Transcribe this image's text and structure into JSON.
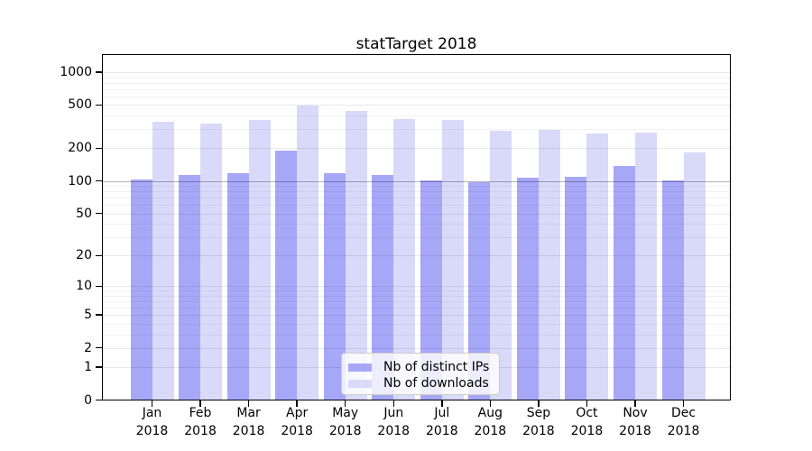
{
  "title": "statTarget 2018",
  "legend": {
    "items": [
      {
        "label": "Nb of distinct IPs",
        "color": "#a7a7f8"
      },
      {
        "label": "Nb of downloads",
        "color": "#d9d9f9"
      }
    ]
  },
  "chart_data": {
    "type": "bar",
    "title": "statTarget 2018",
    "categories": [
      "Jan",
      "Feb",
      "Mar",
      "Apr",
      "May",
      "Jun",
      "Jul",
      "Aug",
      "Sep",
      "Oct",
      "Nov",
      "Dec"
    ],
    "x_year_label": "2018",
    "series": [
      {
        "name": "Nb of distinct IPs",
        "color": "#a7a7f8",
        "values": [
          103,
          114,
          118,
          192,
          118,
          113,
          102,
          98,
          107,
          110,
          138,
          102
        ]
      },
      {
        "name": "Nb of downloads",
        "color": "#d9d9f9",
        "values": [
          354,
          338,
          365,
          490,
          441,
          375,
          368,
          292,
          297,
          275,
          280,
          182
        ]
      }
    ],
    "yscale": "log1p",
    "ylim": [
      0,
      1000
    ],
    "yticks": [
      0,
      1,
      2,
      5,
      10,
      20,
      50,
      100,
      200,
      500,
      1000
    ],
    "minor_gridline_values": [
      3,
      4,
      6,
      7,
      8,
      9,
      30,
      40,
      60,
      70,
      80,
      90,
      300,
      400,
      600,
      700,
      800,
      900
    ],
    "emphasized_gridline_value": 100,
    "grid": true,
    "legend_position": "inside-bottom-center",
    "xlabel": "",
    "ylabel": ""
  }
}
